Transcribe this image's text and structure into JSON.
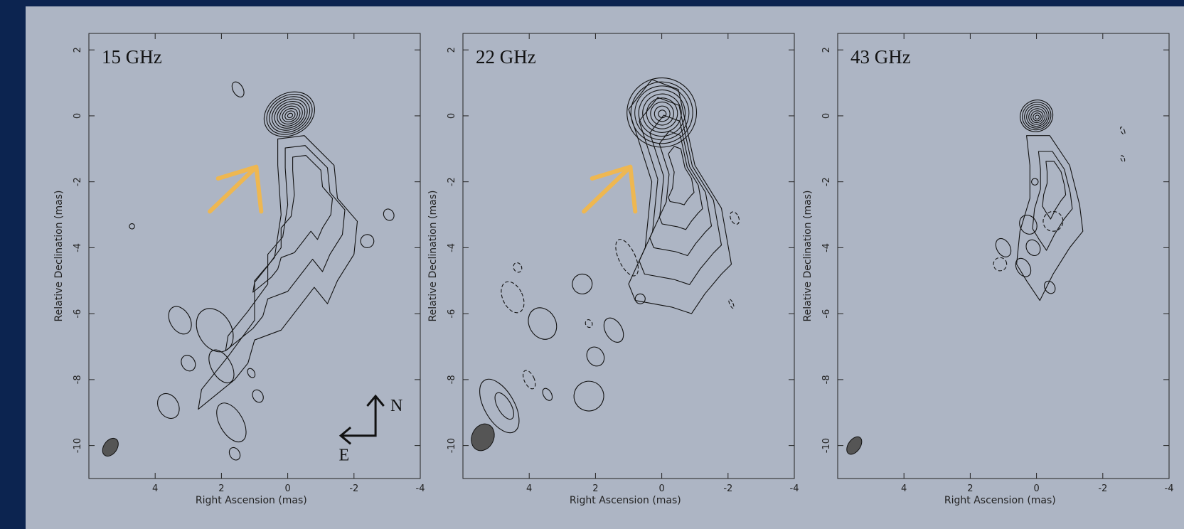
{
  "chart_data": [
    {
      "type": "contour",
      "title": "15 GHz",
      "xlabel": "Right Ascension  (mas)",
      "ylabel": "Relative Declination  (mas)",
      "xlim": [
        6,
        -4
      ],
      "ylim": [
        -11,
        2.5
      ],
      "xticks": [
        4,
        2,
        0,
        -2,
        -4
      ],
      "yticks": [
        2,
        0,
        -2,
        -4,
        -6,
        -8,
        -10
      ],
      "compass": {
        "north": "N",
        "east": "E"
      }
    },
    {
      "type": "contour",
      "title": "22 GHz",
      "xlabel": "Right Ascension  (mas)",
      "ylabel": "Relative Declination  (mas)",
      "xlim": [
        6,
        -4
      ],
      "ylim": [
        -11,
        2.5
      ],
      "xticks": [
        4,
        2,
        0,
        -2,
        -4
      ],
      "yticks": [
        2,
        0,
        -2,
        -4,
        -6,
        -8,
        -10
      ]
    },
    {
      "type": "contour",
      "title": "43 GHz",
      "xlabel": "Right Ascension  (mas)",
      "ylabel": "Relative Declination  (mas)",
      "xlim": [
        6,
        -4
      ],
      "ylim": [
        -11,
        2.5
      ],
      "xticks": [
        4,
        2,
        0,
        -2,
        -4
      ],
      "yticks": [
        2,
        0,
        -2,
        -4,
        -6,
        -8,
        -10
      ]
    }
  ]
}
